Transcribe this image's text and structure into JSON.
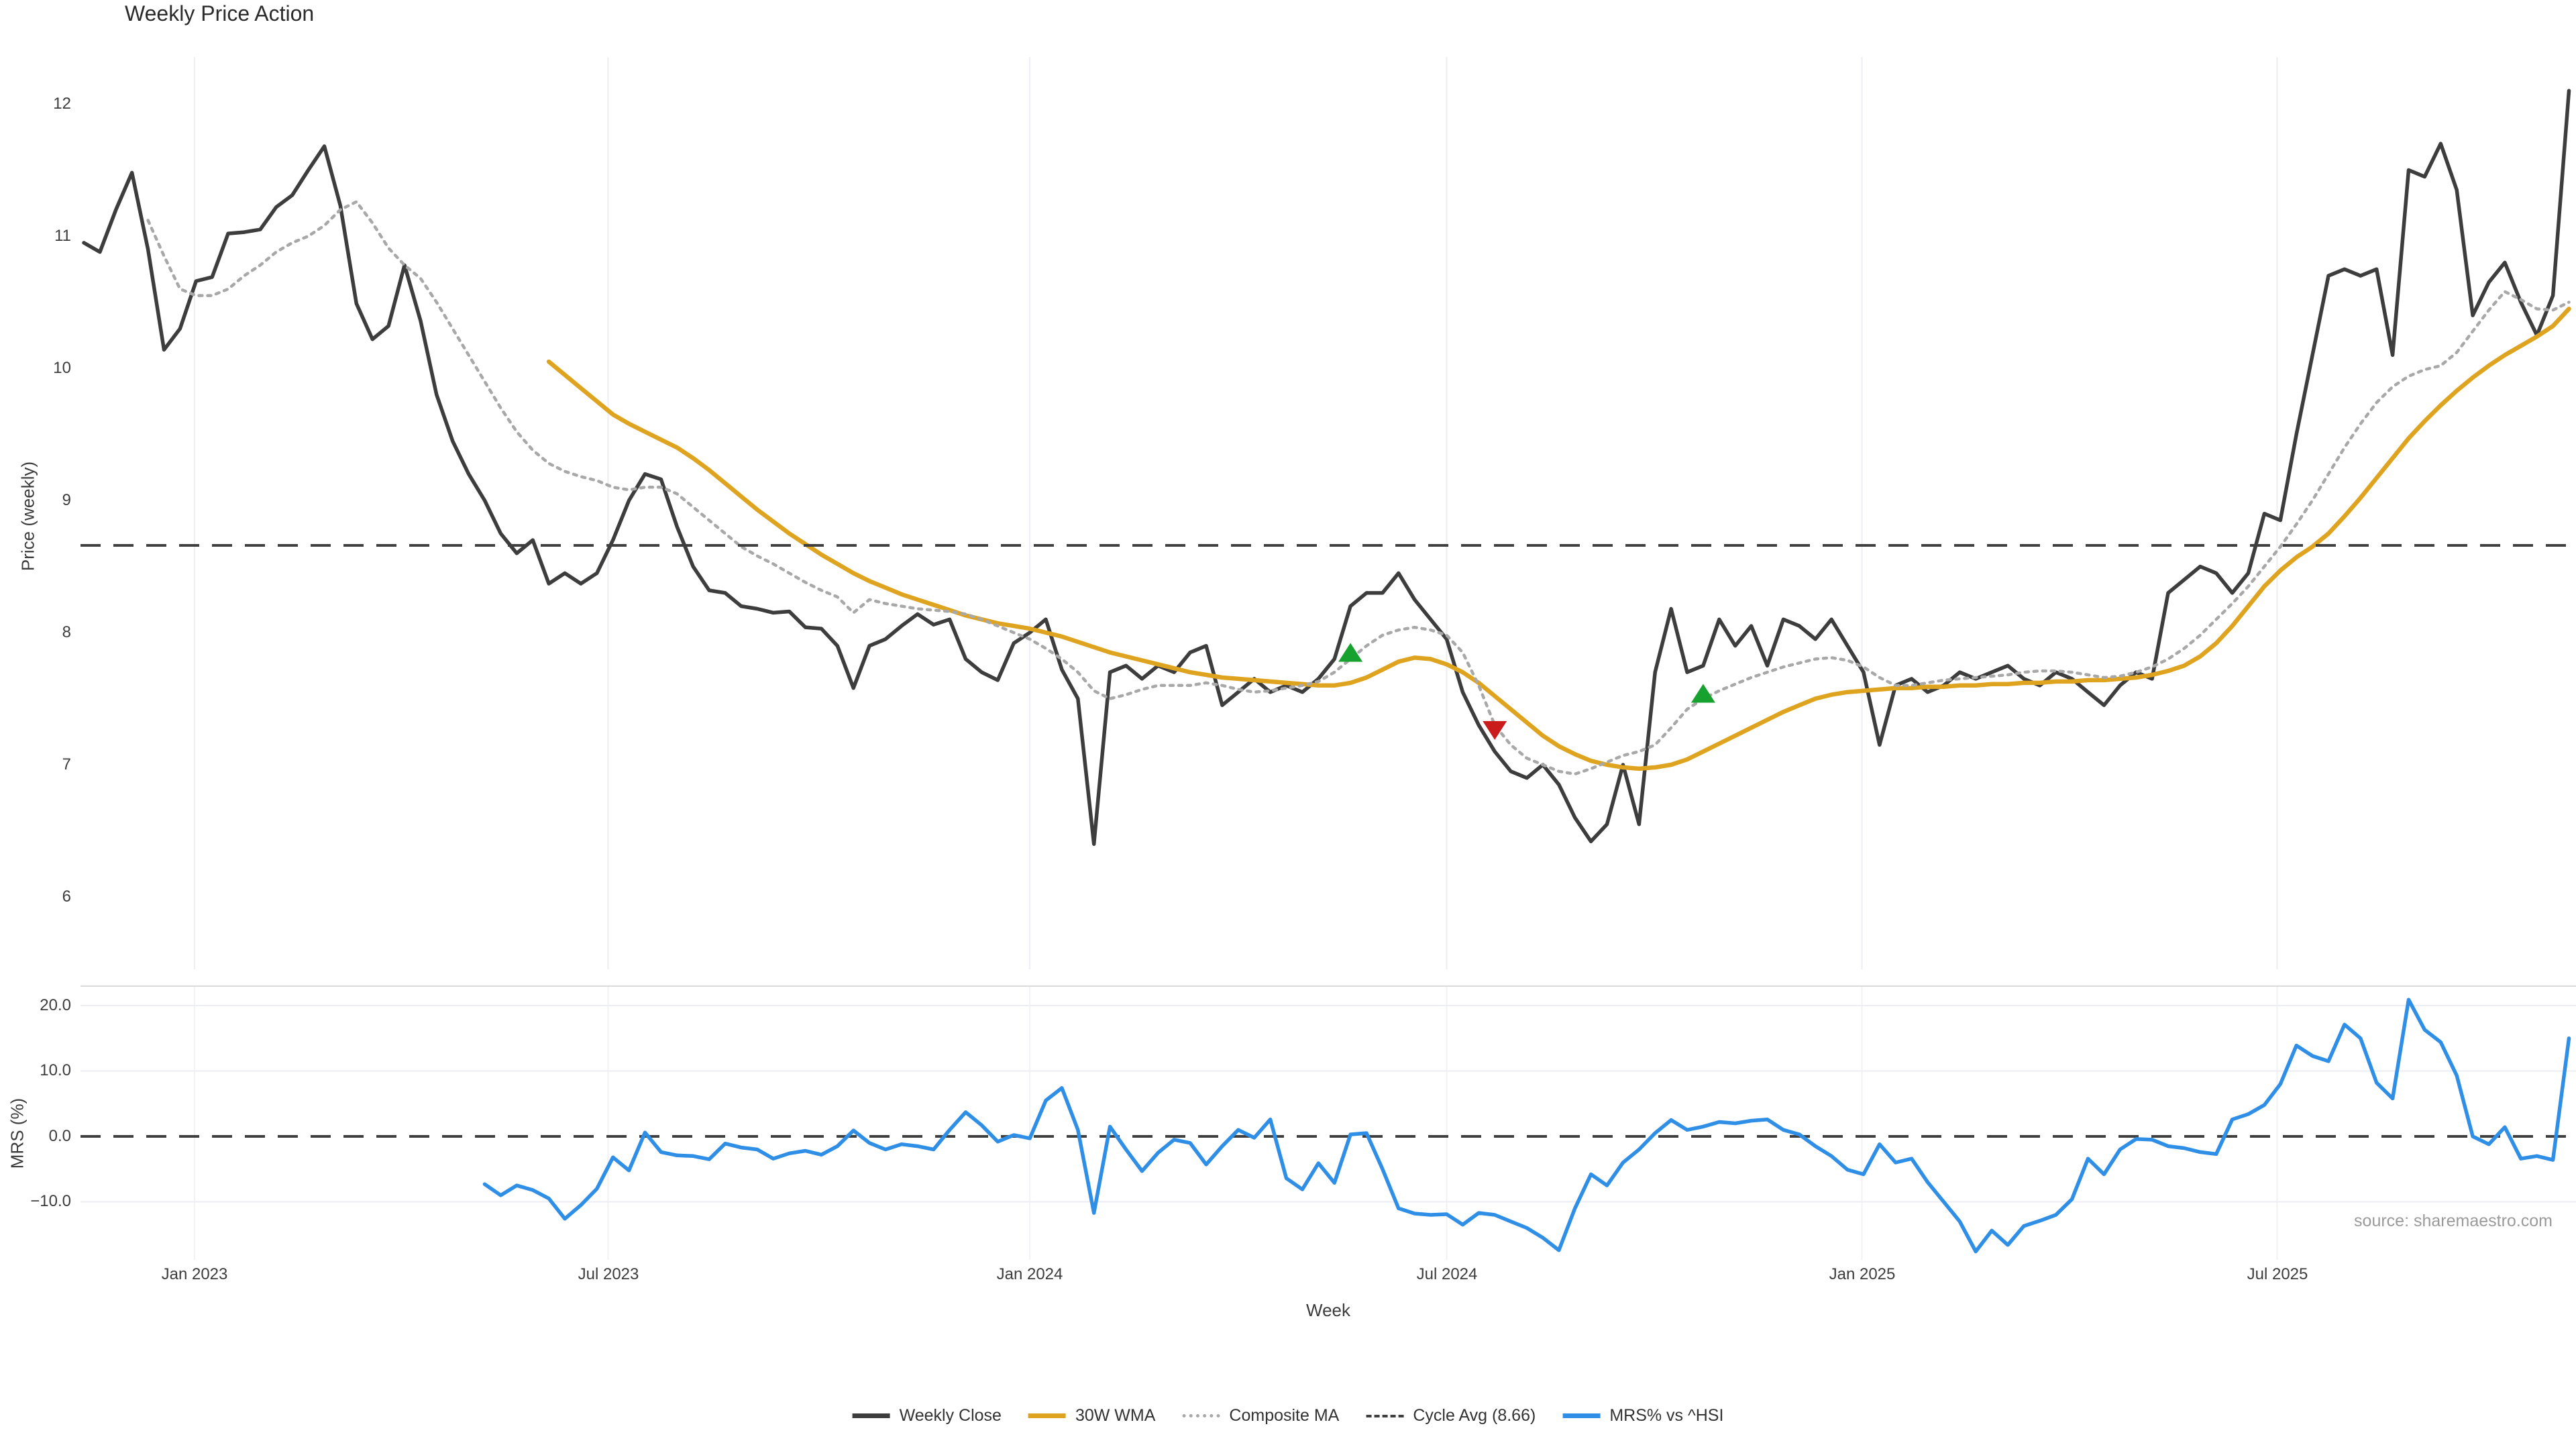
{
  "title": "Weekly Price Action",
  "source": "source: sharemaestro.com",
  "axes": {
    "price_label": "Price (weekly)",
    "mrs_label": "MRS (%)",
    "x_label": "Week",
    "price_ticks": [
      "12",
      "11",
      "10",
      "9",
      "8",
      "7",
      "6"
    ],
    "mrs_ticks": [
      "20.0",
      "10.0",
      "0.0",
      "−10.0"
    ],
    "x_ticks": [
      "Jan 2023",
      "Jul 2023",
      "Jan 2024",
      "Jul 2024",
      "Jan 2025",
      "Jul 2025"
    ]
  },
  "legend": [
    {
      "label": "Weekly Close",
      "color": "#3d3d3d",
      "style": "solid"
    },
    {
      "label": "30W WMA",
      "color": "#dfa41f",
      "style": "solid"
    },
    {
      "label": "Composite MA",
      "color": "#a8a8a8",
      "style": "dotted"
    },
    {
      "label": "Cycle Avg (8.66)",
      "color": "#3f3f3f",
      "style": "dashed"
    },
    {
      "label": "MRS% vs ^HSI",
      "color": "#2f8ee5",
      "style": "solid"
    }
  ],
  "chart_data": {
    "type": "line",
    "title": "Weekly Price Action",
    "x_axis": {
      "label": "Week",
      "tick_labels": [
        "Jan 2023",
        "Jul 2023",
        "Jan 2024",
        "Jul 2024",
        "Jan 2025",
        "Jul 2025"
      ],
      "tick_weeks": [
        6.9,
        32.7,
        59.0,
        85.0,
        110.9,
        136.8
      ],
      "total_weeks": 156
    },
    "panels": [
      {
        "id": "price",
        "ylabel": "Price (weekly)",
        "yticks": [
          12,
          11,
          10,
          9,
          8,
          7,
          6
        ],
        "ylim": [
          5.5,
          12.35
        ],
        "grid": "vertical-only"
      },
      {
        "id": "mrs",
        "ylabel": "MRS (%)",
        "yticks": [
          20.0,
          10.0,
          0.0,
          -10.0
        ],
        "ylim": [
          -22,
          23
        ],
        "grid": "horizontal",
        "zero_line": "dashed"
      }
    ],
    "series": [
      {
        "name": "Weekly Close",
        "panel": "price",
        "color": "#3d3d3d",
        "line_style": "solid",
        "start_week": 0,
        "values": [
          10.95,
          10.88,
          11.2,
          11.48,
          10.9,
          10.14,
          10.3,
          10.66,
          10.69,
          11.02,
          11.03,
          11.05,
          11.22,
          11.31,
          11.5,
          11.68,
          11.23,
          10.49,
          10.22,
          10.32,
          10.78,
          10.36,
          9.8,
          9.45,
          9.2,
          9.0,
          8.75,
          8.6,
          8.7,
          8.37,
          8.45,
          8.37,
          8.45,
          8.7,
          9.0,
          9.2,
          9.16,
          8.8,
          8.5,
          8.32,
          8.3,
          8.2,
          8.18,
          8.15,
          8.16,
          8.04,
          8.03,
          7.9,
          7.58,
          7.9,
          7.95,
          8.05,
          8.14,
          8.06,
          8.1,
          7.8,
          7.7,
          7.64,
          7.92,
          8.0,
          8.1,
          7.72,
          7.5,
          6.4,
          7.7,
          7.75,
          7.65,
          7.75,
          7.7,
          7.85,
          7.9,
          7.45,
          7.55,
          7.65,
          7.55,
          7.6,
          7.55,
          7.65,
          7.8,
          8.2,
          8.3,
          8.3,
          8.45,
          8.25,
          8.1,
          7.95,
          7.55,
          7.3,
          7.1,
          6.95,
          6.9,
          7.0,
          6.85,
          6.6,
          6.42,
          6.55,
          7.0,
          6.55,
          7.7,
          8.18,
          7.7,
          7.75,
          8.1,
          7.9,
          8.05,
          7.75,
          8.1,
          8.05,
          7.95,
          8.1,
          7.9,
          7.7,
          7.15,
          7.6,
          7.65,
          7.55,
          7.6,
          7.7,
          7.65,
          7.7,
          7.75,
          7.65,
          7.6,
          7.7,
          7.65,
          7.55,
          7.45,
          7.6,
          7.7,
          7.65,
          8.3,
          8.4,
          8.5,
          8.45,
          8.3,
          8.45,
          8.9,
          8.85,
          9.5,
          10.1,
          10.7,
          10.75,
          10.7,
          10.75,
          10.1,
          11.5,
          11.45,
          11.7,
          11.35,
          10.4,
          10.65,
          10.8,
          10.5,
          10.25,
          10.55,
          12.1
        ]
      },
      {
        "name": "30W WMA",
        "panel": "price",
        "color": "#dfa41f",
        "line_style": "solid",
        "start_week": 29,
        "values": [
          10.05,
          9.95,
          9.85,
          9.75,
          9.65,
          9.58,
          9.52,
          9.46,
          9.4,
          9.32,
          9.23,
          9.13,
          9.03,
          8.93,
          8.84,
          8.75,
          8.67,
          8.59,
          8.52,
          8.45,
          8.39,
          8.34,
          8.29,
          8.25,
          8.21,
          8.17,
          8.13,
          8.1,
          8.07,
          8.05,
          8.03,
          8.0,
          7.97,
          7.93,
          7.89,
          7.85,
          7.82,
          7.79,
          7.76,
          7.73,
          7.7,
          7.68,
          7.66,
          7.65,
          7.64,
          7.63,
          7.62,
          7.61,
          7.6,
          7.6,
          7.62,
          7.66,
          7.72,
          7.78,
          7.81,
          7.8,
          7.76,
          7.7,
          7.62,
          7.52,
          7.42,
          7.32,
          7.22,
          7.14,
          7.08,
          7.03,
          7.0,
          6.98,
          6.97,
          6.98,
          7.0,
          7.04,
          7.1,
          7.16,
          7.22,
          7.28,
          7.34,
          7.4,
          7.45,
          7.5,
          7.53,
          7.55,
          7.56,
          7.57,
          7.58,
          7.58,
          7.59,
          7.59,
          7.6,
          7.6,
          7.61,
          7.61,
          7.62,
          7.62,
          7.63,
          7.63,
          7.64,
          7.64,
          7.65,
          7.66,
          7.68,
          7.71,
          7.75,
          7.82,
          7.92,
          8.05,
          8.2,
          8.35,
          8.47,
          8.57,
          8.65,
          8.75,
          8.88,
          9.02,
          9.17,
          9.32,
          9.47,
          9.6,
          9.72,
          9.83,
          9.93,
          10.02,
          10.1,
          10.17,
          10.24,
          10.32,
          10.45
        ]
      },
      {
        "name": "Composite MA",
        "panel": "price",
        "color": "#a8a8a8",
        "line_style": "dotted",
        "start_week": 4,
        "values": [
          11.12,
          10.85,
          10.6,
          10.55,
          10.55,
          10.6,
          10.7,
          10.78,
          10.88,
          10.95,
          11.0,
          11.08,
          11.2,
          11.26,
          11.1,
          10.91,
          10.78,
          10.68,
          10.5,
          10.3,
          10.1,
          9.9,
          9.7,
          9.52,
          9.38,
          9.28,
          9.22,
          9.18,
          9.15,
          9.1,
          9.08,
          9.1,
          9.1,
          9.05,
          8.95,
          8.85,
          8.75,
          8.65,
          8.58,
          8.52,
          8.45,
          8.38,
          8.32,
          8.27,
          8.15,
          8.25,
          8.22,
          8.2,
          8.18,
          8.17,
          8.16,
          8.14,
          8.1,
          8.05,
          8.0,
          7.95,
          7.88,
          7.8,
          7.7,
          7.56,
          7.5,
          7.53,
          7.57,
          7.6,
          7.6,
          7.6,
          7.62,
          7.6,
          7.57,
          7.55,
          7.56,
          7.58,
          7.6,
          7.63,
          7.7,
          7.8,
          7.9,
          7.98,
          8.02,
          8.04,
          8.02,
          7.98,
          7.85,
          7.6,
          7.3,
          7.15,
          7.05,
          7.0,
          6.95,
          6.93,
          6.97,
          7.02,
          7.07,
          7.1,
          7.15,
          7.28,
          7.42,
          7.5,
          7.56,
          7.61,
          7.66,
          7.7,
          7.74,
          7.77,
          7.8,
          7.81,
          7.79,
          7.74,
          7.66,
          7.6,
          7.6,
          7.62,
          7.64,
          7.65,
          7.66,
          7.67,
          7.68,
          7.7,
          7.71,
          7.71,
          7.7,
          7.68,
          7.66,
          7.67,
          7.7,
          7.74,
          7.8,
          7.88,
          7.98,
          8.1,
          8.22,
          8.35,
          8.5,
          8.65,
          8.82,
          9.0,
          9.2,
          9.4,
          9.58,
          9.74,
          9.86,
          9.94,
          9.99,
          10.02,
          10.12,
          10.28,
          10.44,
          10.58,
          10.52,
          10.45,
          10.44,
          10.5
        ]
      },
      {
        "name": "Cycle Avg (8.66)",
        "panel": "price",
        "color": "#3f3f3f",
        "line_style": "dashed",
        "type": "hline",
        "value": 8.66
      },
      {
        "name": "MRS% vs ^HSI",
        "panel": "mrs",
        "color": "#2f8ee5",
        "line_style": "solid",
        "start_week": 25,
        "values": [
          -7.3,
          -9.0,
          -7.5,
          -8.2,
          -9.5,
          -12.6,
          -10.5,
          -8.0,
          -3.2,
          -5.2,
          0.6,
          -2.4,
          -2.9,
          -3.0,
          -3.5,
          -1.1,
          -1.7,
          -2.0,
          -3.4,
          -2.6,
          -2.2,
          -2.8,
          -1.5,
          0.9,
          -1.0,
          -2.0,
          -1.2,
          -1.5,
          -2.0,
          1.0,
          3.7,
          1.7,
          -0.8,
          0.2,
          -0.3,
          5.5,
          7.4,
          1.0,
          -11.7,
          1.5,
          -2.0,
          -5.3,
          -2.5,
          -0.5,
          -1.0,
          -4.3,
          -1.5,
          1.0,
          -0.2,
          2.6,
          -6.4,
          -8.1,
          -4.1,
          -7.1,
          0.3,
          0.5,
          -5.0,
          -11.0,
          -11.8,
          -12.0,
          -11.9,
          -13.5,
          -11.7,
          -12.0,
          -13.0,
          -14.0,
          -15.5,
          -17.4,
          -11.0,
          -5.8,
          -7.5,
          -4.0,
          -2.0,
          0.5,
          2.5,
          1.0,
          1.5,
          2.2,
          2.0,
          2.4,
          2.6,
          1.0,
          0.3,
          -1.5,
          -3.0,
          -5.1,
          -5.8,
          -1.2,
          -4.0,
          -3.4,
          -7.0,
          -10.0,
          -13.0,
          -17.6,
          -14.4,
          -16.6,
          -13.7,
          -12.9,
          -12.0,
          -9.6,
          -3.4,
          -5.8,
          -2.0,
          -0.4,
          -0.5,
          -1.5,
          -1.8,
          -2.4,
          -2.7,
          2.6,
          3.4,
          4.8,
          8.0,
          13.9,
          12.3,
          11.5,
          17.1,
          15.0,
          8.2,
          5.8,
          20.9,
          16.3,
          14.4,
          9.3,
          0.0,
          -1.2,
          1.4,
          -3.4,
          -3.0,
          -3.6,
          15.0
        ]
      }
    ],
    "markers": [
      {
        "week": 79,
        "price": 7.83,
        "direction": "up",
        "color": "#17a12e"
      },
      {
        "week": 88,
        "price": 7.28,
        "direction": "down",
        "color": "#cb1c1c"
      },
      {
        "week": 101,
        "price": 7.52,
        "direction": "up",
        "color": "#17a12e"
      }
    ],
    "reference_levels": {
      "cycle_avg": 8.66,
      "mrs_zero": 0.0
    }
  }
}
